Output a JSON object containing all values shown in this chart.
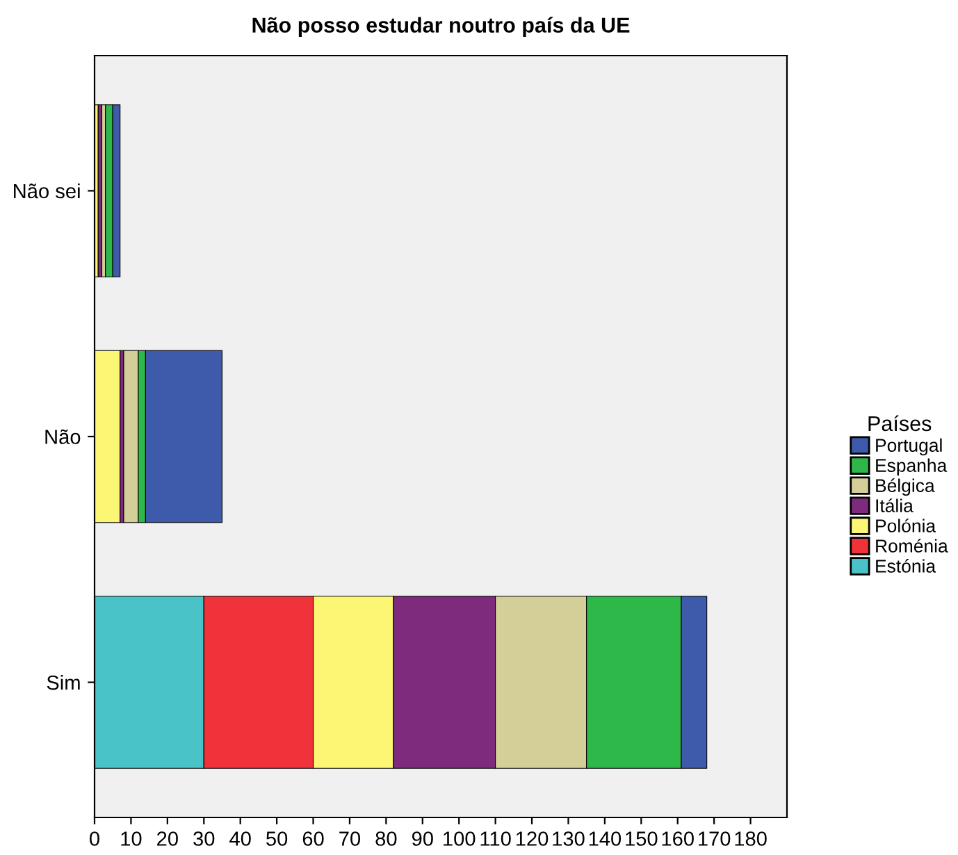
{
  "chart_data": {
    "type": "bar",
    "orientation": "horizontal",
    "stacked": true,
    "title": "Não posso estudar noutro país da UE",
    "legend_title": "Países",
    "legend": "right",
    "categories": [
      "Não sei",
      "Não",
      "Sim"
    ],
    "series": [
      {
        "name": "Estónia",
        "color": "#4ac3c8",
        "values": [
          0,
          0,
          30
        ]
      },
      {
        "name": "Roménia",
        "color": "#f0323a",
        "values": [
          0,
          0,
          30
        ]
      },
      {
        "name": "Polónia",
        "color": "#fbf774",
        "values": [
          1,
          7,
          22
        ]
      },
      {
        "name": "Itália",
        "color": "#7e2b7e",
        "values": [
          1,
          1,
          28
        ]
      },
      {
        "name": "Bélgica",
        "color": "#d4cf98",
        "values": [
          1,
          4,
          25
        ]
      },
      {
        "name": "Espanha",
        "color": "#2fb84a",
        "values": [
          2,
          2,
          26
        ]
      },
      {
        "name": "Portugal",
        "color": "#3e5bab",
        "values": [
          2,
          21,
          7
        ]
      }
    ],
    "xlim": [
      0,
      190
    ],
    "xticks": [
      0,
      10,
      20,
      30,
      40,
      50,
      60,
      70,
      80,
      90,
      100,
      110,
      120,
      130,
      140,
      150,
      160,
      170,
      180
    ],
    "grid": false
  }
}
